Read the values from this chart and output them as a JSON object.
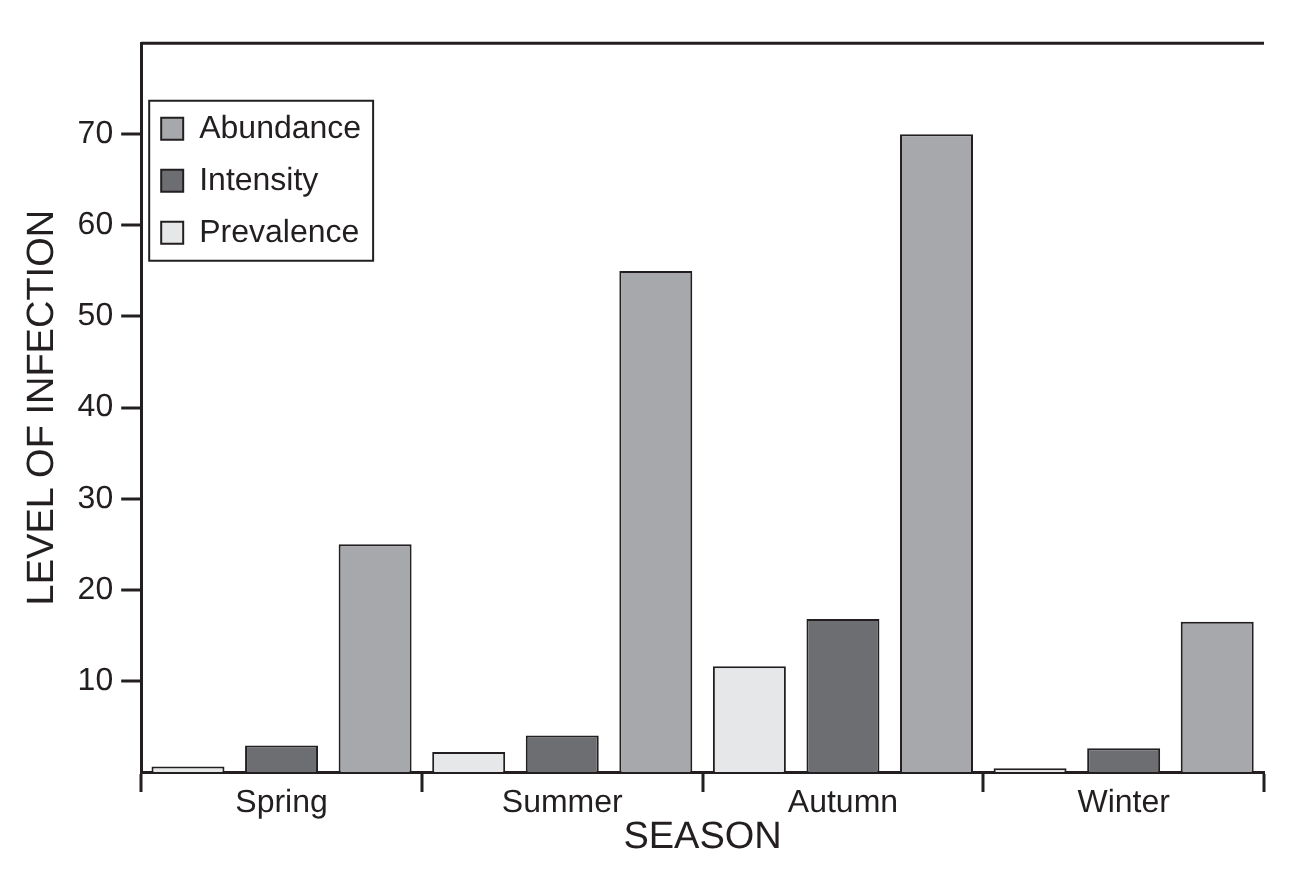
{
  "chart_data": {
    "type": "bar",
    "xlabel": "SEASON",
    "ylabel": "LEVEL OF INFECTION",
    "categories": [
      "Spring",
      "Summer",
      "Autumn",
      "Winter"
    ],
    "series": [
      {
        "name": "Prevalence",
        "color": "#e6e7e9",
        "values": [
          0.6,
          2.2,
          11.6,
          0.4
        ]
      },
      {
        "name": "Intensity",
        "color": "#6d6e72",
        "values": [
          2.9,
          4.0,
          16.8,
          2.6
        ]
      },
      {
        "name": "Abundance",
        "color": "#a7a8ac",
        "values": [
          25,
          55,
          70,
          16.5
        ]
      }
    ],
    "ylim": [
      0,
      80
    ],
    "yticks": [
      10,
      20,
      30,
      40,
      50,
      60,
      70
    ],
    "grid": false,
    "legend": "top left"
  }
}
